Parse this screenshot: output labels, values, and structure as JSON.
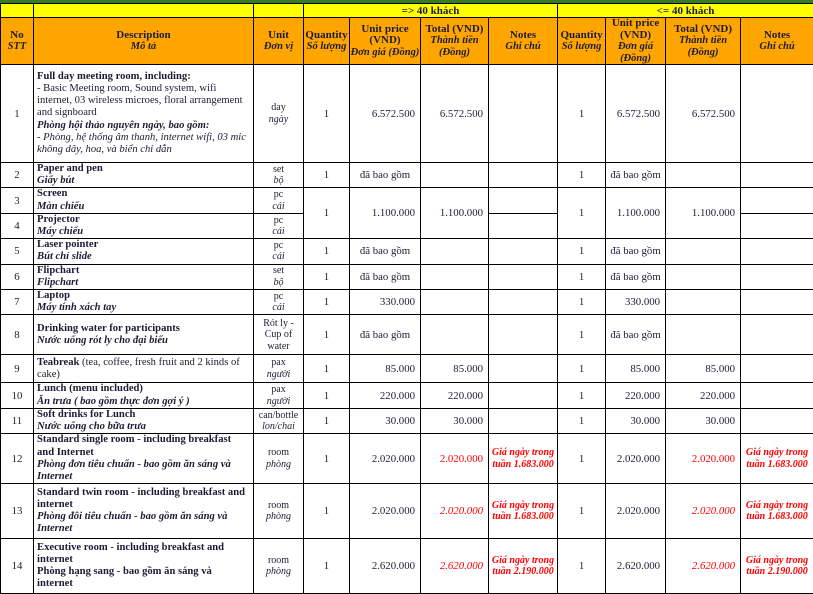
{
  "top_bands": {
    "group1": "=> 40 khách",
    "group2": "<= 40 khách"
  },
  "header": {
    "no": [
      "No",
      "STT"
    ],
    "description": [
      "Description",
      "Mô tả"
    ],
    "unit": [
      "Unit",
      "Đơn vị"
    ],
    "quantity": [
      "Quantity",
      "Số lượng"
    ],
    "unit_price": [
      "Unit price (VND)",
      "Đơn giá (Đồng)"
    ],
    "total": [
      "Total (VND)",
      "Thành tiền (Đồng)"
    ],
    "notes": [
      "Notes",
      "Ghi chú"
    ]
  },
  "colors": {
    "header_bg": "#ffa500",
    "band_bg": "#ffff00",
    "accent_red": "#ff0000",
    "top_strip": "#377c21"
  },
  "rows": [
    {
      "no": "1",
      "description": [
        [
          [
            "Full day meeting room, including:",
            "b"
          ]
        ],
        [
          [
            "- Basic Meeting room, Sound system, wifi internet, 03 wireless microes, floral arrangement and signboard",
            "r"
          ]
        ],
        [
          [
            "Phòng hội thảo nguyên ngày, bao gồm:",
            "bi"
          ]
        ],
        [
          [
            "- Phòng, hệ thống âm thanh, internet wifi, 03 mic không dây, hoa, và biển chỉ dẫn",
            "i"
          ]
        ]
      ],
      "unit": [
        [
          "day",
          "r"
        ],
        [
          "ngày",
          "i"
        ]
      ],
      "g1": {
        "q": "1",
        "up": "6.572.500",
        "upa": "right",
        "t": "6.572.500",
        "ts": "n",
        "note": ""
      },
      "g2": {
        "q": "1",
        "up": "6.572.500",
        "upa": "right",
        "t": "6.572.500",
        "ts": "n",
        "note": ""
      }
    },
    {
      "no": "2",
      "description": [
        [
          [
            "Paper and pen",
            "b"
          ]
        ],
        [
          [
            "Giấy bút",
            "bi"
          ]
        ]
      ],
      "unit": [
        [
          "set",
          "r"
        ],
        [
          "bộ",
          "i"
        ]
      ],
      "g1": {
        "q": "1",
        "up": "đã bao gồm",
        "upa": "center",
        "t": "",
        "ts": "n",
        "note": ""
      },
      "g2": {
        "q": "1",
        "up": "đã bao gồm",
        "upa": "center",
        "t": "",
        "ts": "n",
        "note": ""
      }
    },
    {
      "no": "3",
      "description": [
        [
          [
            "Screen",
            "b"
          ]
        ],
        [
          [
            "Màn chiếu",
            "bi"
          ]
        ]
      ],
      "unit": [
        [
          "pc",
          "r"
        ],
        [
          "cái",
          "i"
        ]
      ],
      "g1": {
        "q": "1",
        "up": "1.100.000",
        "upa": "right",
        "t": "1.100.000",
        "ts": "n",
        "note": "",
        "span": 2
      },
      "g2": {
        "q": "1",
        "up": "1.100.000",
        "upa": "right",
        "t": "1.100.000",
        "ts": "n",
        "note": "",
        "span": 2
      }
    },
    {
      "no": "4",
      "description": [
        [
          [
            "Projector",
            "b"
          ]
        ],
        [
          [
            "Máy chiếu",
            "bi"
          ]
        ]
      ],
      "unit": [
        [
          "pc",
          "r"
        ],
        [
          "cái",
          "i"
        ]
      ],
      "g1": {
        "merged": true,
        "note": ""
      },
      "g2": {
        "merged": true,
        "note": ""
      }
    },
    {
      "no": "5",
      "description": [
        [
          [
            "Laser pointer",
            "b"
          ]
        ],
        [
          [
            "Bút chỉ slide",
            "bi"
          ]
        ]
      ],
      "unit": [
        [
          "pc",
          "r"
        ],
        [
          "cái",
          "i"
        ]
      ],
      "g1": {
        "q": "1",
        "up": "đã bao gồm",
        "upa": "center",
        "t": "",
        "ts": "n",
        "note": ""
      },
      "g2": {
        "q": "1",
        "up": "đã bao gồm",
        "upa": "center",
        "t": "",
        "ts": "n",
        "note": ""
      }
    },
    {
      "no": "6",
      "description": [
        [
          [
            "Flipchart",
            "b"
          ]
        ],
        [
          [
            "Flipchart",
            "bi"
          ]
        ]
      ],
      "unit": [
        [
          "set",
          "r"
        ],
        [
          "bộ",
          "i"
        ]
      ],
      "g1": {
        "q": "1",
        "up": "đã bao gồm",
        "upa": "center",
        "t": "",
        "ts": "n",
        "note": ""
      },
      "g2": {
        "q": "1",
        "up": "đã bao gồm",
        "upa": "center",
        "t": "",
        "ts": "n",
        "note": ""
      }
    },
    {
      "no": "7",
      "description": [
        [
          [
            "Laptop",
            "b"
          ]
        ],
        [
          [
            "Máy tính xách tay",
            "bi"
          ]
        ]
      ],
      "unit": [
        [
          "pc",
          "r"
        ],
        [
          "cái",
          "i"
        ]
      ],
      "g1": {
        "q": "1",
        "up": "330.000",
        "upa": "right",
        "t": "",
        "ts": "n",
        "note": ""
      },
      "g2": {
        "q": "1",
        "up": "330.000",
        "upa": "right",
        "t": "",
        "ts": "n",
        "note": ""
      }
    },
    {
      "no": "8",
      "description": [
        [
          [
            "Drinking water for participants",
            "b"
          ]
        ],
        [
          [
            "Nước uống rót ly cho đại biểu",
            "bi"
          ]
        ]
      ],
      "unit": [
        [
          "Rót ly - Cup of water",
          "r"
        ]
      ],
      "g1": {
        "q": "1",
        "up": "đã bao gồm",
        "upa": "center",
        "t": "",
        "ts": "n",
        "note": ""
      },
      "g2": {
        "q": "1",
        "up": "đã bao gồm",
        "upa": "center",
        "t": "",
        "ts": "n",
        "note": ""
      }
    },
    {
      "no": "9",
      "description": [
        [
          [
            "Teabreak ",
            "b"
          ],
          [
            "(tea, coffee, fresh fruit and 2 kinds of cake)",
            "r"
          ]
        ]
      ],
      "unit": [
        [
          "pax",
          "r"
        ],
        [
          "người",
          "i"
        ]
      ],
      "g1": {
        "q": "1",
        "up": "85.000",
        "upa": "right",
        "t": "85.000",
        "ts": "n",
        "note": ""
      },
      "g2": {
        "q": "1",
        "up": "85.000",
        "upa": "right",
        "t": "85.000",
        "ts": "n",
        "note": ""
      }
    },
    {
      "no": "10",
      "description": [
        [
          [
            "Lunch (menu included)",
            "b"
          ]
        ],
        [
          [
            "Ăn trưa ( bao gồm thực đơn gợi ý )",
            "bi"
          ]
        ]
      ],
      "unit": [
        [
          "pax",
          "r"
        ],
        [
          "người",
          "i"
        ]
      ],
      "g1": {
        "q": "1",
        "up": "220.000",
        "upa": "right",
        "t": "220.000",
        "ts": "n",
        "note": ""
      },
      "g2": {
        "q": "1",
        "up": "220.000",
        "upa": "right",
        "t": "220.000",
        "ts": "n",
        "note": ""
      }
    },
    {
      "no": "11",
      "description": [
        [
          [
            "Soft drinks for Lunch",
            "b"
          ]
        ],
        [
          [
            "Nước uống cho bữa trưa",
            "bi"
          ]
        ]
      ],
      "unit": [
        [
          "can/bottle",
          "r"
        ],
        [
          "lon/chai",
          "i"
        ]
      ],
      "g1": {
        "q": "1",
        "up": "30.000",
        "upa": "right",
        "t": "30.000",
        "ts": "n",
        "note": ""
      },
      "g2": {
        "q": "1",
        "up": "30.000",
        "upa": "right",
        "t": "30.000",
        "ts": "n",
        "note": ""
      }
    },
    {
      "no": "12",
      "description": [
        [
          [
            "Standard single room - including breakfast and Internet",
            "b"
          ]
        ],
        [
          [
            "Phòng đơn tiêu chuẩn - bao gồm ăn sáng và Internet",
            "bi"
          ]
        ]
      ],
      "unit": [
        [
          "room",
          "r"
        ],
        [
          "phòng",
          "i"
        ]
      ],
      "g1": {
        "q": "1",
        "up": "2.020.000",
        "upa": "right",
        "t": "2.020.000",
        "ts": "red",
        "note": "Giá ngày trong tuần 1.683.000"
      },
      "g2": {
        "q": "1",
        "up": "2.020.000",
        "upa": "right",
        "t": "2.020.000",
        "ts": "red",
        "note": "Giá ngày trong tuần 1.683.000"
      }
    },
    {
      "no": "13",
      "description": [
        [
          [
            "Standard twin room - including breakfast and internet",
            "b"
          ]
        ],
        [
          [
            "Phòng đôi tiêu chuẩn - bao gồm ăn sáng và Internet",
            "bi"
          ]
        ]
      ],
      "unit": [
        [
          "room",
          "r"
        ],
        [
          "phòng",
          "i"
        ]
      ],
      "g1": {
        "q": "1",
        "up": "2.020.000",
        "upa": "right",
        "t": "2.020.000",
        "ts": "redi",
        "note": "Giá ngày trong tuần 1.683.000"
      },
      "g2": {
        "q": "1",
        "up": "2.020.000",
        "upa": "right",
        "t": "2.020.000",
        "ts": "redi",
        "note": "Giá ngày trong tuần 1.683.000"
      }
    },
    {
      "no": "14",
      "description": [
        [
          [
            "Executive room - including breakfast and internet",
            "b"
          ]
        ],
        [
          [
            "Phòng hạng sang - bao gồm ăn sáng và internet",
            "b"
          ]
        ]
      ],
      "unit": [
        [
          "room",
          "r"
        ],
        [
          "phòng",
          "i"
        ]
      ],
      "g1": {
        "q": "1",
        "up": "2.620.000",
        "upa": "right",
        "t": "2.620.000",
        "ts": "redi",
        "note": "Giá ngày trong tuần 2.190.000"
      },
      "g2": {
        "q": "1",
        "up": "2.620.000",
        "upa": "right",
        "t": "2.620.000",
        "ts": "redi",
        "note": "Giá ngày trong tuần 2.190.000"
      }
    }
  ]
}
